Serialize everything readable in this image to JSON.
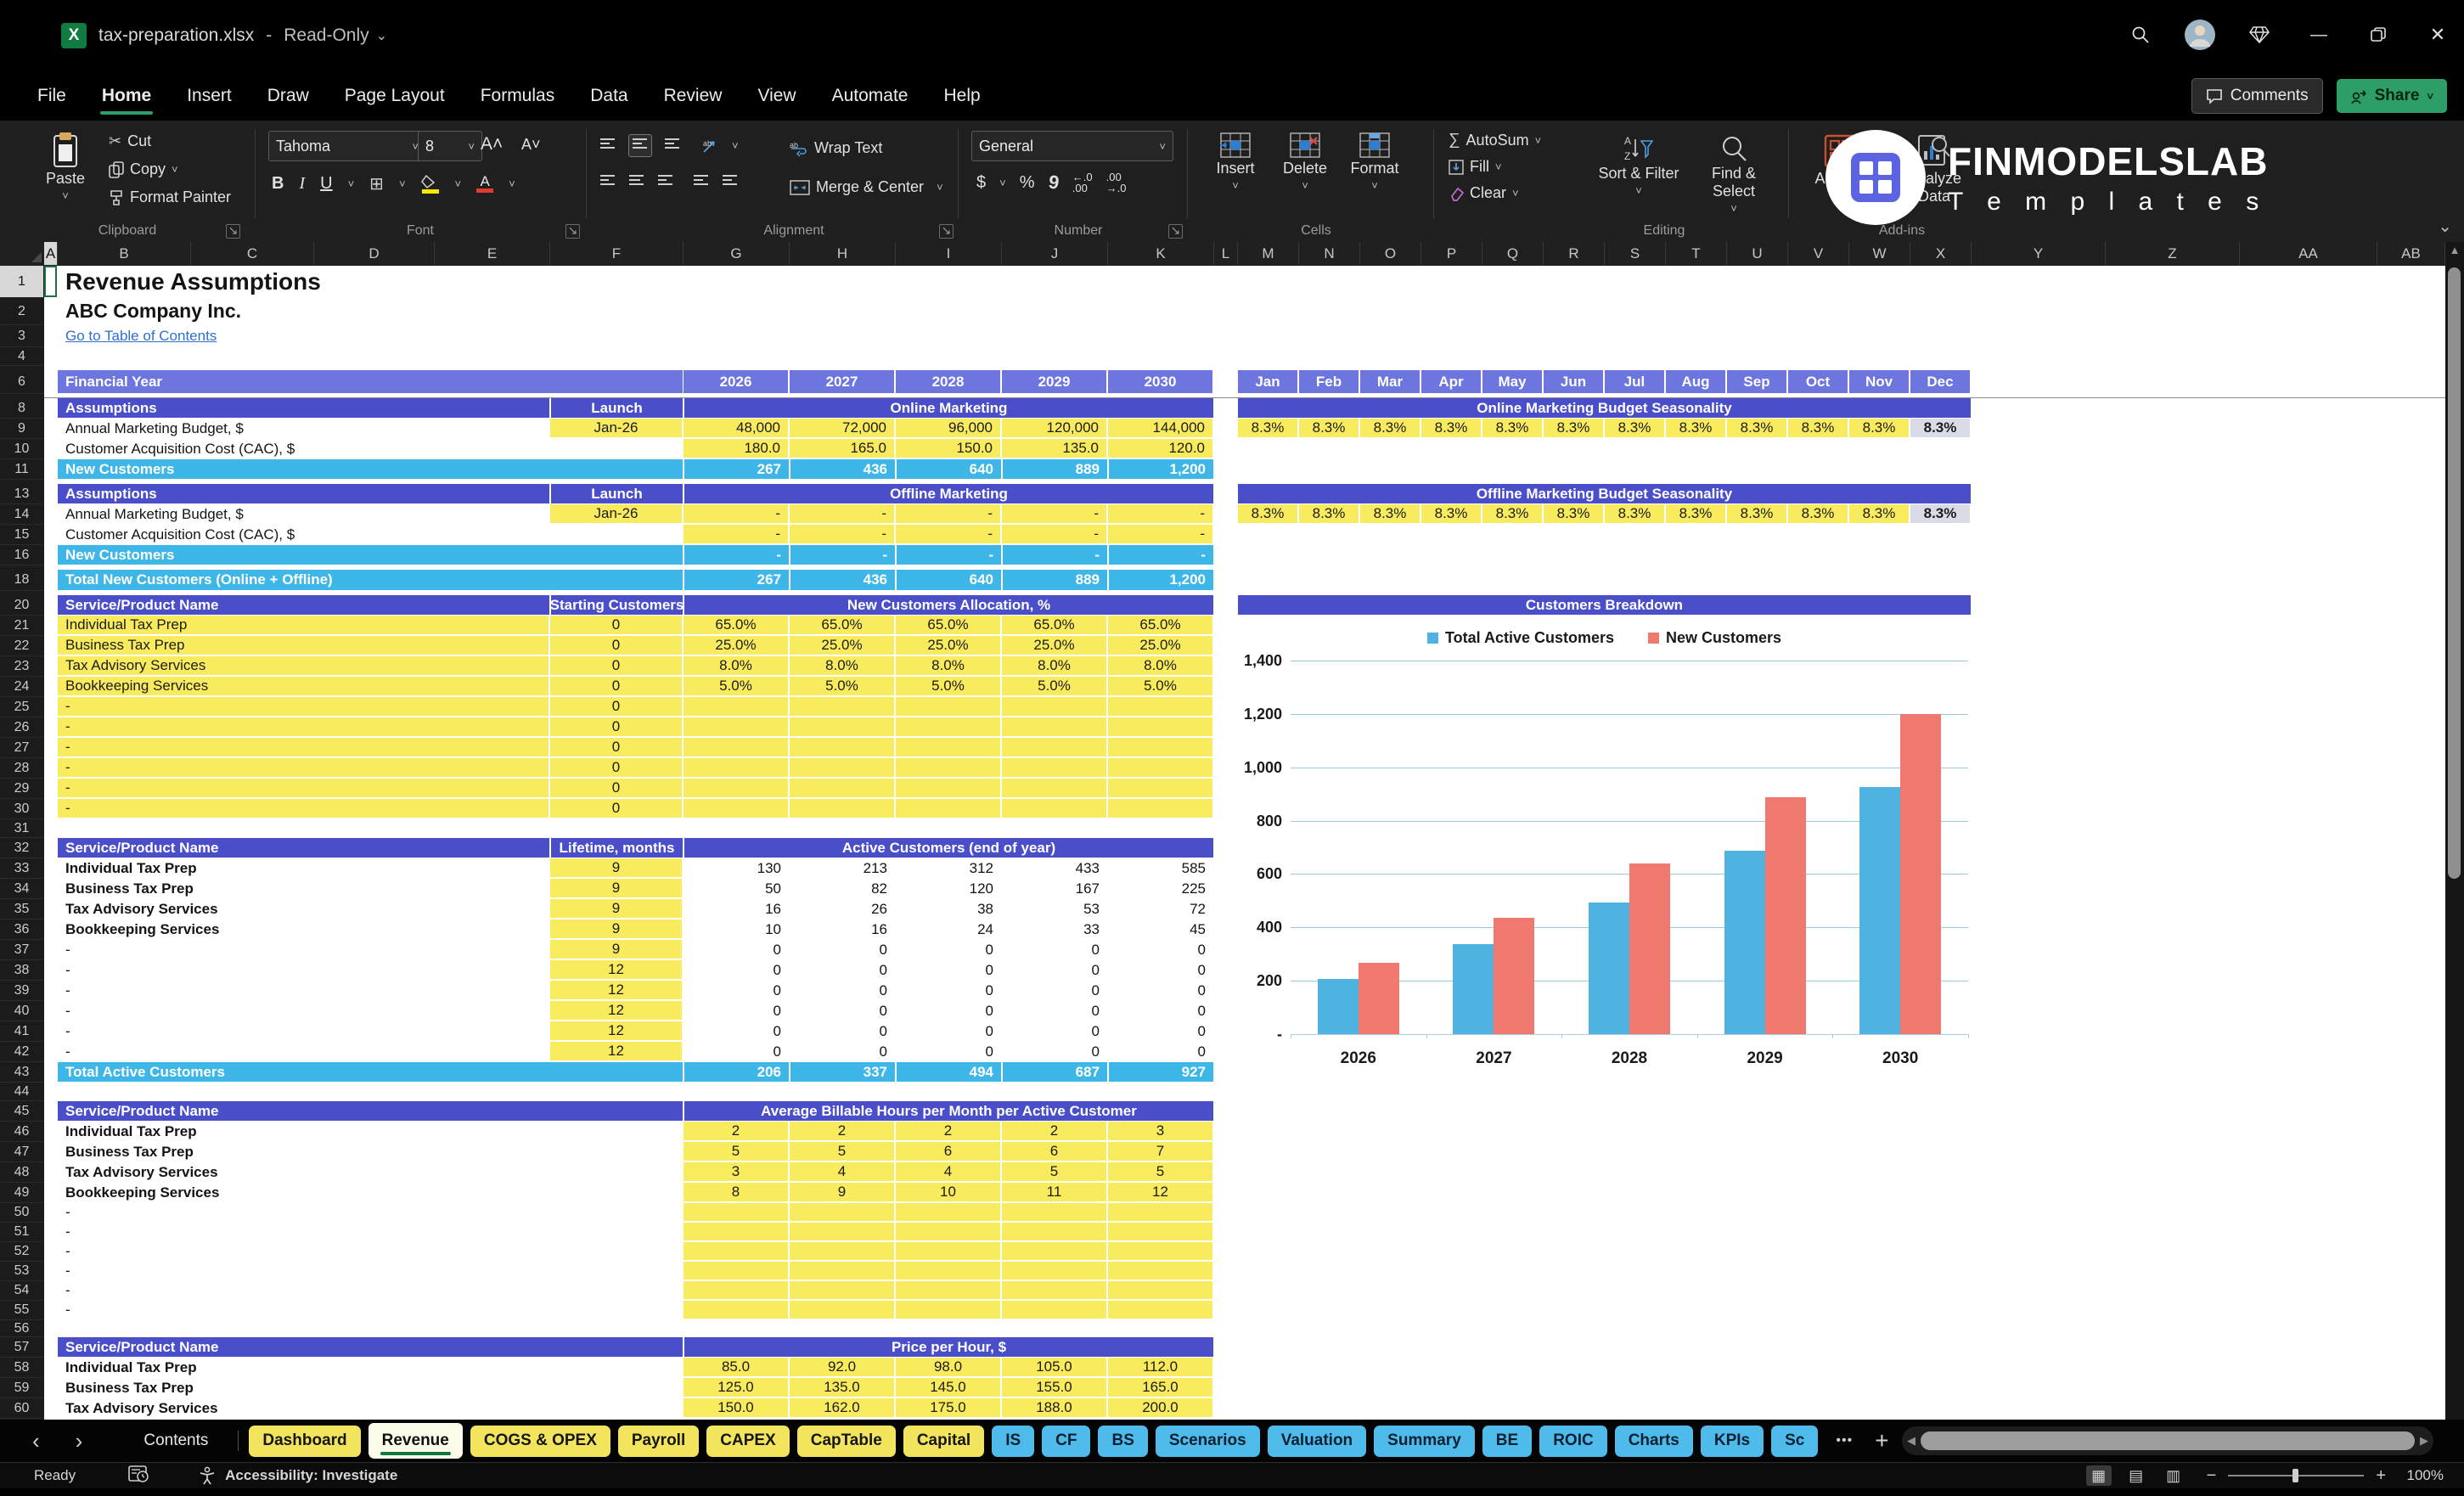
{
  "titlebar": {
    "file_name": "tax-preparation.xlsx",
    "separator": "-",
    "mode": "Read-Only"
  },
  "menu": {
    "items": [
      "File",
      "Home",
      "Insert",
      "Draw",
      "Page Layout",
      "Formulas",
      "Data",
      "Review",
      "View",
      "Automate",
      "Help"
    ],
    "active": "Home",
    "comments_label": "Comments",
    "share_label": "Share"
  },
  "ribbon": {
    "clipboard": {
      "paste": "Paste",
      "cut": "Cut",
      "copy": "Copy",
      "format_painter": "Format Painter",
      "group": "Clipboard"
    },
    "font": {
      "family": "Tahoma",
      "size": "8",
      "group": "Font"
    },
    "alignment": {
      "wrap": "Wrap Text",
      "merge": "Merge & Center",
      "group": "Alignment"
    },
    "number": {
      "format": "General",
      "group": "Number"
    },
    "cells": {
      "insert": "Insert",
      "delete": "Delete",
      "format": "Format",
      "group": "Cells"
    },
    "editing": {
      "autosum": "AutoSum",
      "fill": "Fill",
      "clear": "Clear",
      "sort": "Sort & Filter",
      "find": "Find & Select",
      "group": "Editing"
    },
    "addins": {
      "addins": "Add-ins",
      "analyze": "Analyze Data",
      "group": "Add-ins"
    }
  },
  "brand": {
    "line1": "FINMODELSLAB",
    "line2": "T e m p l a t e s"
  },
  "sheet": {
    "columns": [
      "A",
      "B",
      "C",
      "D",
      "E",
      "F",
      "G",
      "H",
      "I",
      "J",
      "K",
      "L",
      "M",
      "N",
      "O",
      "P",
      "Q",
      "R",
      "S",
      "T",
      "U",
      "V",
      "W",
      "X",
      "Y",
      "Z",
      "AA",
      "AB"
    ],
    "row_numbers": [
      1,
      2,
      3,
      4,
      6,
      8,
      9,
      10,
      11,
      13,
      14,
      15,
      16,
      18,
      20,
      21,
      22,
      23,
      24,
      25,
      26,
      27,
      28,
      29,
      30,
      31,
      32,
      33,
      34,
      35,
      36,
      37,
      38,
      39,
      40,
      41,
      42,
      43,
      44,
      45,
      46,
      47,
      48,
      49,
      50,
      51,
      52,
      53,
      54,
      55,
      56,
      57,
      58,
      59,
      60
    ],
    "title": "Revenue Assumptions",
    "company": "ABC Company Inc.",
    "link": "Go to Table of Contents",
    "fin_year_label": "Financial Year",
    "years": [
      "2026",
      "2027",
      "2028",
      "2029",
      "2030"
    ],
    "months": [
      "Jan",
      "Feb",
      "Mar",
      "Apr",
      "May",
      "Jun",
      "Jul",
      "Aug",
      "Sep",
      "Oct",
      "Nov",
      "Dec"
    ],
    "online": {
      "header": "Assumptions",
      "launch_h": "Launch",
      "title": "Online Marketing",
      "budget_label": "Annual Marketing Budget, $",
      "budget_launch": "Jan-26",
      "budget": [
        "48,000",
        "72,000",
        "96,000",
        "120,000",
        "144,000"
      ],
      "cac_label": "Customer Acquisition Cost (CAC), $",
      "cac": [
        "180.0",
        "165.0",
        "150.0",
        "135.0",
        "120.0"
      ],
      "total_label": "New Customers",
      "total": [
        "267",
        "436",
        "640",
        "889",
        "1,200"
      ]
    },
    "offline": {
      "header": "Assumptions",
      "launch_h": "Launch",
      "title": "Offline Marketing",
      "budget_label": "Annual Marketing Budget, $",
      "budget_launch": "Jan-26",
      "budget": [
        "-",
        "-",
        "-",
        "-",
        "-"
      ],
      "cac_label": "Customer Acquisition Cost (CAC), $",
      "cac": [
        "-",
        "-",
        "-",
        "-",
        "-"
      ],
      "total_label": "New Customers",
      "total": [
        "-",
        "-",
        "-",
        "-",
        "-"
      ]
    },
    "total_new": {
      "label": "Total New Customers (Online + Offline)",
      "values": [
        "267",
        "436",
        "640",
        "889",
        "1,200"
      ]
    },
    "seasonality_online": {
      "title": "Online Marketing Budget Seasonality",
      "values": [
        "8.3%",
        "8.3%",
        "8.3%",
        "8.3%",
        "8.3%",
        "8.3%",
        "8.3%",
        "8.3%",
        "8.3%",
        "8.3%",
        "8.3%",
        "8.3%"
      ]
    },
    "seasonality_offline": {
      "title": "Offline Marketing Budget Seasonality",
      "values": [
        "8.3%",
        "8.3%",
        "8.3%",
        "8.3%",
        "8.3%",
        "8.3%",
        "8.3%",
        "8.3%",
        "8.3%",
        "8.3%",
        "8.3%",
        "8.3%"
      ]
    },
    "allocation": {
      "name_h": "Service/Product Name",
      "mid_h": "Starting Customers",
      "val_h": "New Customers Allocation, %",
      "rows": [
        {
          "name": "Individual Tax Prep",
          "mid": "0",
          "values": [
            "65.0%",
            "65.0%",
            "65.0%",
            "65.0%",
            "65.0%"
          ]
        },
        {
          "name": "Business Tax Prep",
          "mid": "0",
          "values": [
            "25.0%",
            "25.0%",
            "25.0%",
            "25.0%",
            "25.0%"
          ]
        },
        {
          "name": "Tax Advisory Services",
          "mid": "0",
          "values": [
            "8.0%",
            "8.0%",
            "8.0%",
            "8.0%",
            "8.0%"
          ]
        },
        {
          "name": "Bookkeeping Services",
          "mid": "0",
          "values": [
            "5.0%",
            "5.0%",
            "5.0%",
            "5.0%",
            "5.0%"
          ]
        },
        {
          "name": "-",
          "mid": "0",
          "values": [
            "",
            "",
            "",
            "",
            ""
          ]
        },
        {
          "name": "-",
          "mid": "0",
          "values": [
            "",
            "",
            "",
            "",
            ""
          ]
        },
        {
          "name": "-",
          "mid": "0",
          "values": [
            "",
            "",
            "",
            "",
            ""
          ]
        },
        {
          "name": "-",
          "mid": "0",
          "values": [
            "",
            "",
            "",
            "",
            ""
          ]
        },
        {
          "name": "-",
          "mid": "0",
          "values": [
            "",
            "",
            "",
            "",
            ""
          ]
        },
        {
          "name": "-",
          "mid": "0",
          "values": [
            "",
            "",
            "",
            "",
            ""
          ]
        }
      ]
    },
    "active_customers": {
      "name_h": "Service/Product Name",
      "mid_h": "Lifetime, months",
      "val_h": "Active Customers (end of year)",
      "rows": [
        {
          "name": "Individual Tax Prep",
          "mid": "9",
          "values": [
            "130",
            "213",
            "312",
            "433",
            "585"
          ],
          "bold": true
        },
        {
          "name": "Business Tax Prep",
          "mid": "9",
          "values": [
            "50",
            "82",
            "120",
            "167",
            "225"
          ],
          "bold": true
        },
        {
          "name": "Tax Advisory Services",
          "mid": "9",
          "values": [
            "16",
            "26",
            "38",
            "53",
            "72"
          ],
          "bold": true
        },
        {
          "name": "Bookkeeping Services",
          "mid": "9",
          "values": [
            "10",
            "16",
            "24",
            "33",
            "45"
          ],
          "bold": true
        },
        {
          "name": "-",
          "mid": "9",
          "values": [
            "0",
            "0",
            "0",
            "0",
            "0"
          ],
          "bold": false
        },
        {
          "name": "-",
          "mid": "12",
          "values": [
            "0",
            "0",
            "0",
            "0",
            "0"
          ],
          "bold": false
        },
        {
          "name": "-",
          "mid": "12",
          "values": [
            "0",
            "0",
            "0",
            "0",
            "0"
          ],
          "bold": false
        },
        {
          "name": "-",
          "mid": "12",
          "values": [
            "0",
            "0",
            "0",
            "0",
            "0"
          ],
          "bold": false
        },
        {
          "name": "-",
          "mid": "12",
          "values": [
            "0",
            "0",
            "0",
            "0",
            "0"
          ],
          "bold": false
        },
        {
          "name": "-",
          "mid": "12",
          "values": [
            "0",
            "0",
            "0",
            "0",
            "0"
          ],
          "bold": false
        }
      ],
      "total_label": "Total Active Customers",
      "total": [
        "206",
        "337",
        "494",
        "687",
        "927"
      ]
    },
    "billable": {
      "name_h": "Service/Product Name",
      "val_h": "Average Billable Hours per Month per Active Customer",
      "rows": [
        {
          "name": "Individual Tax Prep",
          "values": [
            "2",
            "2",
            "2",
            "2",
            "3"
          ],
          "bold": true
        },
        {
          "name": "Business Tax Prep",
          "values": [
            "5",
            "5",
            "6",
            "6",
            "7"
          ],
          "bold": true
        },
        {
          "name": "Tax Advisory Services",
          "values": [
            "3",
            "4",
            "4",
            "5",
            "5"
          ],
          "bold": true
        },
        {
          "name": "Bookkeeping Services",
          "values": [
            "8",
            "9",
            "10",
            "11",
            "12"
          ],
          "bold": true
        },
        {
          "name": "-",
          "values": [
            "",
            "",
            "",
            "",
            ""
          ],
          "bold": false
        },
        {
          "name": "-",
          "values": [
            "",
            "",
            "",
            "",
            ""
          ],
          "bold": false
        },
        {
          "name": "-",
          "values": [
            "",
            "",
            "",
            "",
            ""
          ],
          "bold": false
        },
        {
          "name": "-",
          "values": [
            "",
            "",
            "",
            "",
            ""
          ],
          "bold": false
        },
        {
          "name": "-",
          "values": [
            "",
            "",
            "",
            "",
            ""
          ],
          "bold": false
        },
        {
          "name": "-",
          "values": [
            "",
            "",
            "",
            "",
            ""
          ],
          "bold": false
        }
      ]
    },
    "price": {
      "name_h": "Service/Product Name",
      "val_h": "Price per Hour, $",
      "rows": [
        {
          "name": "Individual Tax Prep",
          "values": [
            "85.0",
            "92.0",
            "98.0",
            "105.0",
            "112.0"
          ],
          "bold": true
        },
        {
          "name": "Business Tax Prep",
          "values": [
            "125.0",
            "135.0",
            "145.0",
            "155.0",
            "165.0"
          ],
          "bold": true
        },
        {
          "name": "Tax Advisory Services",
          "values": [
            "150.0",
            "162.0",
            "175.0",
            "188.0",
            "200.0"
          ],
          "bold": true
        }
      ]
    }
  },
  "chart_data": {
    "type": "bar",
    "title": "Customers Breakdown",
    "categories": [
      "2026",
      "2027",
      "2028",
      "2029",
      "2030"
    ],
    "series": [
      {
        "name": "Total Active Customers",
        "color": "#4fb2e1",
        "values": [
          206,
          337,
          494,
          687,
          927
        ]
      },
      {
        "name": "New Customers",
        "color": "#f0796f",
        "values": [
          267,
          436,
          640,
          889,
          1200
        ]
      }
    ],
    "ylim": [
      0,
      1400
    ],
    "ytick_labels": [
      "-",
      "200",
      "400",
      "600",
      "800",
      "1,000",
      "1,200",
      "1,400"
    ],
    "grid": true,
    "legend_position": "top",
    "gridline_color": "#9cc9e8"
  },
  "tabs": {
    "items": [
      {
        "label": "Contents",
        "style": "plain"
      },
      {
        "label": "Dashboard",
        "style": "yellow"
      },
      {
        "label": "Revenue",
        "style": "active"
      },
      {
        "label": "COGS & OPEX",
        "style": "yellow"
      },
      {
        "label": "Payroll",
        "style": "yellow"
      },
      {
        "label": "CAPEX",
        "style": "yellow"
      },
      {
        "label": "CapTable",
        "style": "yellow"
      },
      {
        "label": "Capital",
        "style": "yellow"
      },
      {
        "label": "IS",
        "style": "blue"
      },
      {
        "label": "CF",
        "style": "blue"
      },
      {
        "label": "BS",
        "style": "blue"
      },
      {
        "label": "Scenarios",
        "style": "blue"
      },
      {
        "label": "Valuation",
        "style": "blue"
      },
      {
        "label": "Summary",
        "style": "blue"
      },
      {
        "label": "BE",
        "style": "blue"
      },
      {
        "label": "ROIC",
        "style": "blue"
      },
      {
        "label": "Charts",
        "style": "blue"
      },
      {
        "label": "KPIs",
        "style": "blue"
      },
      {
        "label": "Sc",
        "style": "blue"
      }
    ],
    "more": "•••",
    "add": "+",
    "kebab": "⋮"
  },
  "statusbar": {
    "ready": "Ready",
    "accessibility": "Accessibility: Investigate",
    "zoom_minus": "−",
    "zoom_plus": "+",
    "zoom": "100%"
  },
  "icons": {
    "caret_down": "⌄",
    "chevron_small": "˅",
    "chevron_left": "‹",
    "chevron_right": "›",
    "scroll_left": "◀",
    "scroll_right": "▶",
    "scroll_up": "▲",
    "minimize": "—",
    "close": "✕",
    "sum": "∑",
    "cut": "✂",
    "launcher": "↘",
    "view_normal": "▦",
    "view_layout": "▤",
    "view_break": "▥",
    "dollar": "$",
    "percent": "%",
    "comma": "9"
  },
  "colors": {
    "header_periwinkle": "#6c76de",
    "header_blue": "#4a4fc9",
    "total_cyan": "#3fb6e8",
    "input_yellow": "#f9eb5e",
    "dec_gray": "#d9dbe6",
    "link_blue": "#2e6fd0",
    "tab_yellow": "#f2e45c",
    "tab_blue": "#4fbbeb",
    "share_green": "#2e9e68",
    "excel_green": "#107c41"
  }
}
